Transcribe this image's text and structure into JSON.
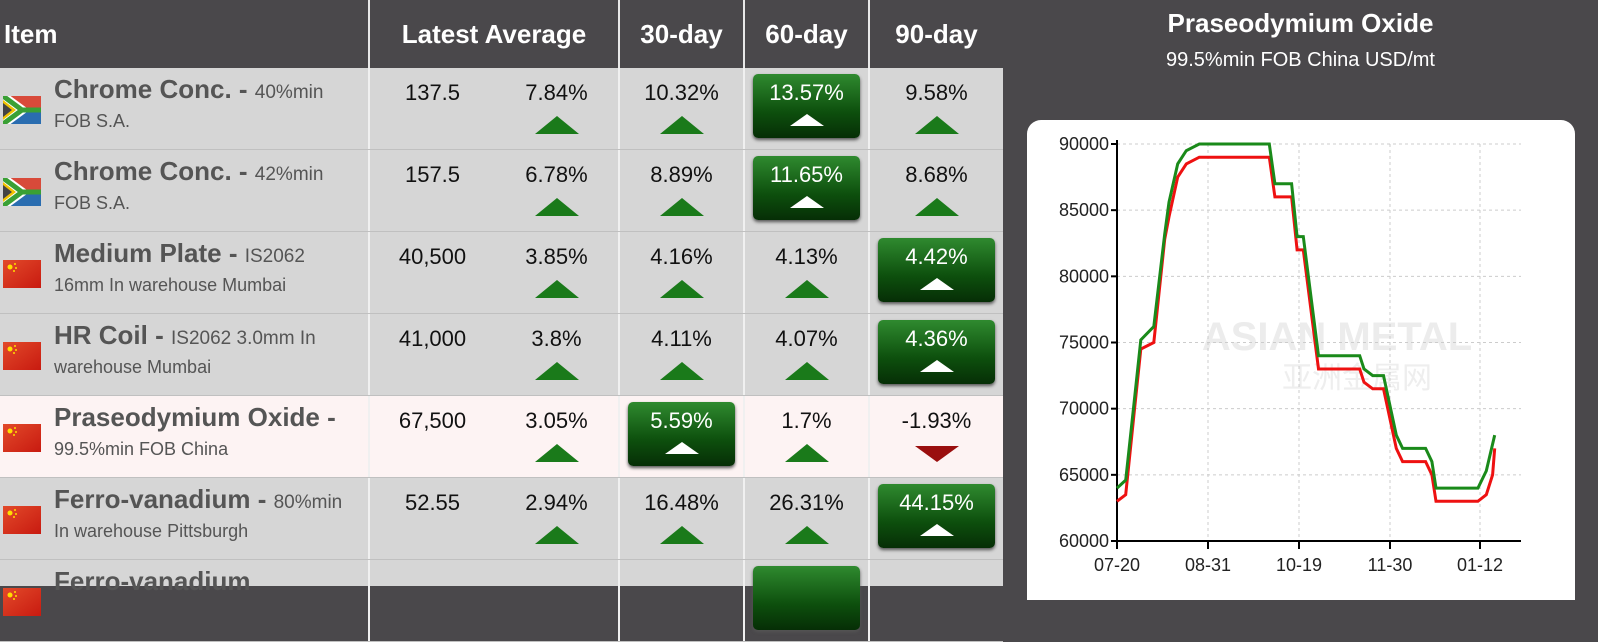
{
  "table": {
    "headers": {
      "item": "Item",
      "latest": "Latest Average",
      "d30": "30-day",
      "d60": "60-day",
      "d90": "90-day"
    },
    "rows": [
      {
        "flag": "south-africa",
        "name": "Chrome Conc.",
        "spec": "40%min",
        "spec2": "FOB S.A.",
        "latest": "137.5",
        "weekly": "7.84%",
        "d30": "10.32%",
        "d60": "13.57%",
        "d90": "9.58%",
        "best": "d60",
        "dir": [
          "up",
          "up",
          "up",
          "up"
        ]
      },
      {
        "flag": "south-africa",
        "name": "Chrome Conc.",
        "spec": "42%min",
        "spec2": "FOB S.A.",
        "latest": "157.5",
        "weekly": "6.78%",
        "d30": "8.89%",
        "d60": "11.65%",
        "d90": "8.68%",
        "best": "d60",
        "dir": [
          "up",
          "up",
          "up",
          "up"
        ]
      },
      {
        "flag": "china",
        "name": "Medium Plate",
        "spec": "IS2062",
        "spec2": "16mm In warehouse Mumbai",
        "latest": "40,500",
        "weekly": "3.85%",
        "d30": "4.16%",
        "d60": "4.13%",
        "d90": "4.42%",
        "best": "d90",
        "dir": [
          "up",
          "up",
          "up",
          "up"
        ]
      },
      {
        "flag": "china",
        "name": "HR Coil",
        "spec": "IS2062 3.0mm In",
        "spec2": "warehouse Mumbai",
        "latest": "41,000",
        "weekly": "3.8%",
        "d30": "4.11%",
        "d60": "4.07%",
        "d90": "4.36%",
        "best": "d90",
        "dir": [
          "up",
          "up",
          "up",
          "up"
        ]
      },
      {
        "flag": "china",
        "name": "Praseodymium Oxide",
        "spec": "",
        "spec2": "99.5%min FOB China",
        "latest": "67,500",
        "weekly": "3.05%",
        "d30": "5.59%",
        "d60": "1.7%",
        "d90": "-1.93%",
        "best": "d30",
        "selected": true,
        "dir": [
          "up",
          "up",
          "up",
          "down"
        ]
      },
      {
        "flag": "china",
        "name": "Ferro-vanadium",
        "spec": "80%min",
        "spec2": "In warehouse Pittsburgh",
        "latest": "52.55",
        "weekly": "2.94%",
        "d30": "16.48%",
        "d60": "26.31%",
        "d90": "44.15%",
        "best": "d90",
        "dir": [
          "up",
          "up",
          "up",
          "up"
        ]
      },
      {
        "flag": "china",
        "name": "Ferro-vanadium",
        "spec": "",
        "spec2": "",
        "latest": "",
        "weekly": "",
        "d30": "",
        "d60": "",
        "d90": "",
        "best": "d60",
        "dir": []
      }
    ]
  },
  "panel": {
    "title": "Praseodymium Oxide",
    "subtitle": "99.5%min FOB China USD/mt",
    "watermark": "ASIAN METAL 亚洲金属网"
  },
  "colors": {
    "up": "#1a7a1a",
    "down": "#9a0e0e",
    "series_high": "#1a8a1a",
    "series_low": "#ee1111",
    "header": "#4a484b"
  },
  "chart_data": {
    "type": "line",
    "title": "Praseodymium Oxide",
    "subtitle": "99.5%min FOB China USD/mt",
    "xticks": [
      "07-20",
      "08-31",
      "10-19",
      "11-30",
      "01-12"
    ],
    "yticks": [
      60000,
      65000,
      70000,
      75000,
      80000,
      85000,
      90000
    ],
    "ylim": [
      60000,
      90000
    ],
    "grid": true,
    "series": [
      {
        "color": "#1a8a1a",
        "points": [
          [
            "07-20",
            64000
          ],
          [
            "07-24",
            64600
          ],
          [
            "07-28",
            70600
          ],
          [
            "07-31",
            75200
          ],
          [
            "08-06",
            76200
          ],
          [
            "08-11",
            83200
          ],
          [
            "08-13",
            85600
          ],
          [
            "08-17",
            88500
          ],
          [
            "08-21",
            89500
          ],
          [
            "08-27",
            90000
          ],
          [
            "10-03",
            90000
          ],
          [
            "10-06",
            87000
          ],
          [
            "10-15",
            87000
          ],
          [
            "10-18",
            83000
          ],
          [
            "10-21",
            83000
          ],
          [
            "10-28",
            74000
          ],
          [
            "11-16",
            74000
          ],
          [
            "11-18",
            73000
          ],
          [
            "11-22",
            72500
          ],
          [
            "11-27",
            72500
          ],
          [
            "12-03",
            68000
          ],
          [
            "12-06",
            67000
          ],
          [
            "12-17",
            67000
          ],
          [
            "12-20",
            66000
          ],
          [
            "12-22",
            64000
          ],
          [
            "01-11",
            64000
          ],
          [
            "01-15",
            65300
          ],
          [
            "01-19",
            68000
          ]
        ]
      },
      {
        "color": "#ee1111",
        "points": [
          [
            "07-20",
            63000
          ],
          [
            "07-24",
            63500
          ],
          [
            "07-28",
            69800
          ],
          [
            "07-31",
            74500
          ],
          [
            "08-06",
            75000
          ],
          [
            "08-11",
            82800
          ],
          [
            "08-13",
            84500
          ],
          [
            "08-17",
            87500
          ],
          [
            "08-21",
            88500
          ],
          [
            "08-27",
            89000
          ],
          [
            "10-03",
            89000
          ],
          [
            "10-06",
            86000
          ],
          [
            "10-15",
            86000
          ],
          [
            "10-18",
            82000
          ],
          [
            "10-21",
            82000
          ],
          [
            "10-28",
            73000
          ],
          [
            "11-16",
            73000
          ],
          [
            "11-18",
            72000
          ],
          [
            "11-22",
            71500
          ],
          [
            "11-27",
            71500
          ],
          [
            "12-03",
            67000
          ],
          [
            "12-06",
            66000
          ],
          [
            "12-17",
            66000
          ],
          [
            "12-20",
            65000
          ],
          [
            "12-22",
            63000
          ],
          [
            "01-11",
            63000
          ],
          [
            "01-15",
            63500
          ],
          [
            "01-18",
            65000
          ],
          [
            "01-19",
            67000
          ]
        ]
      }
    ]
  }
}
